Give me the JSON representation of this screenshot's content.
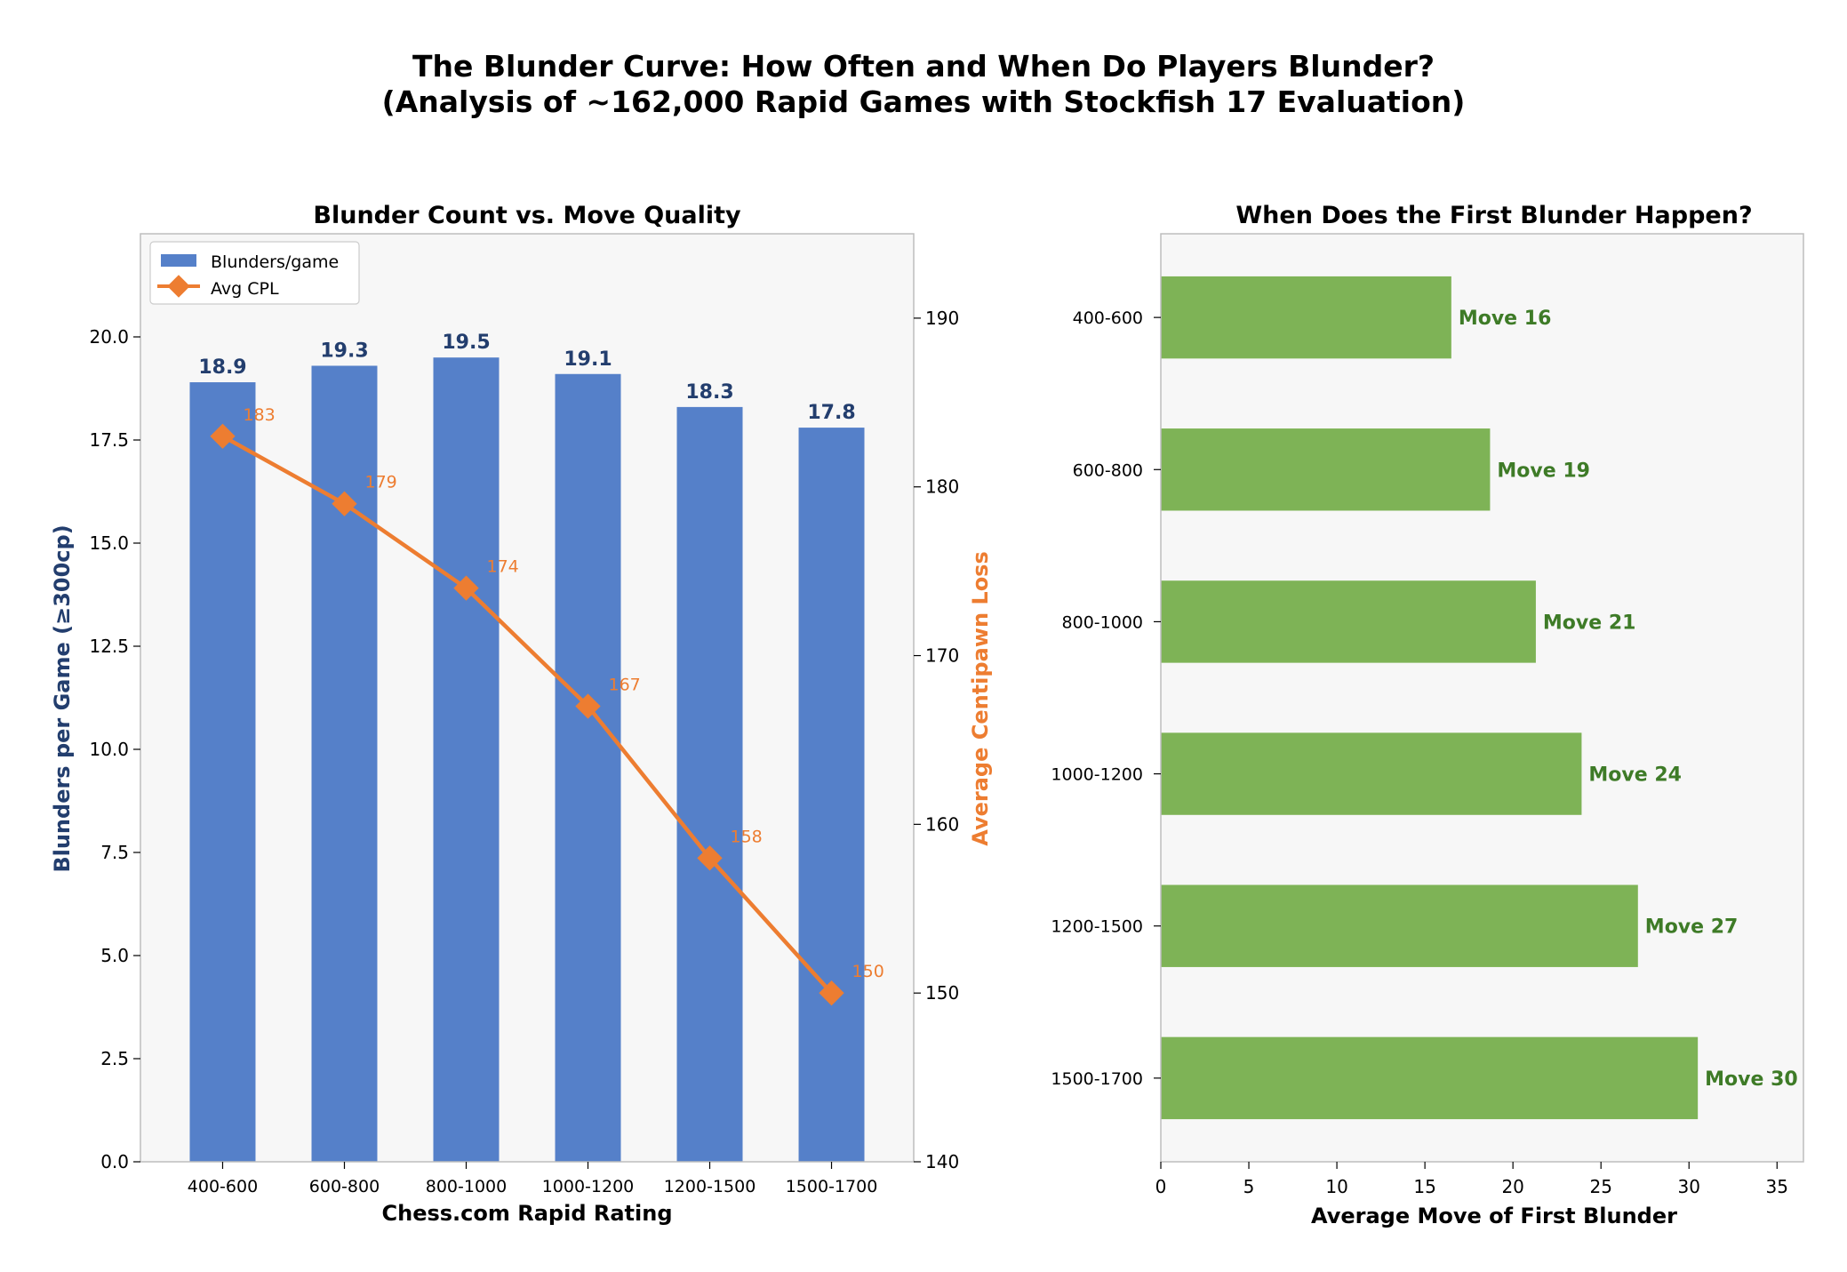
{
  "figure": {
    "title_line1": "The Blunder Curve: How Often and When Do Players Blunder?",
    "title_line2": "(Analysis of ~162,000 Rapid Games with Stockfish 17 Evaluation)"
  },
  "colors": {
    "bar_blue": "#5580c9",
    "label_blue": "#233e6e",
    "line_orange": "#ed7d31",
    "bar_green": "#7eb356",
    "label_green": "#3e7b27",
    "plot_bg": "#f7f7f7"
  },
  "chart_data": [
    {
      "type": "bar",
      "title": "Blunder Count vs. Move Quality",
      "xlabel": "Chess.com Rapid Rating",
      "ylabel": "Blunders per Game (≥300cp)",
      "ylabel_right": "Average Centipawn Loss",
      "categories": [
        "400-600",
        "600-800",
        "800-1000",
        "1000-1200",
        "1200-1500",
        "1500-1700"
      ],
      "series": [
        {
          "name": "Blunders/game",
          "kind": "bar",
          "axis": "left",
          "values": [
            18.9,
            19.3,
            19.5,
            19.1,
            18.3,
            17.8
          ],
          "labels": [
            "18.9",
            "19.3",
            "19.5",
            "19.1",
            "18.3",
            "17.8"
          ]
        },
        {
          "name": "Avg CPL",
          "kind": "line",
          "marker": "diamond",
          "axis": "right",
          "values": [
            183,
            179,
            174,
            167,
            158,
            150
          ],
          "labels": [
            "183",
            "179",
            "174",
            "167",
            "158",
            "150"
          ]
        }
      ],
      "ylim": [
        0,
        22.5
      ],
      "ylim_right": [
        140,
        195
      ],
      "yticks": [
        0.0,
        2.5,
        5.0,
        7.5,
        10.0,
        12.5,
        15.0,
        17.5,
        20.0
      ],
      "ytick_labels": [
        "0.0",
        "2.5",
        "5.0",
        "7.5",
        "10.0",
        "12.5",
        "15.0",
        "17.5",
        "20.0"
      ],
      "yticks_right": [
        140,
        150,
        160,
        170,
        180,
        190
      ],
      "ytick_labels_right": [
        "140",
        "150",
        "160",
        "170",
        "180",
        "190"
      ],
      "legend_position": "top-left",
      "grid": false
    },
    {
      "type": "bar",
      "orientation": "horizontal",
      "title": "When Does the First Blunder Happen?",
      "xlabel": "Average Move of First Blunder",
      "ylabel": "",
      "categories": [
        "400-600",
        "600-800",
        "800-1000",
        "1000-1200",
        "1200-1500",
        "1500-1700"
      ],
      "values": [
        16.5,
        18.7,
        21.3,
        23.9,
        27.1,
        30.5
      ],
      "labels": [
        "Move 16",
        "Move 19",
        "Move 21",
        "Move 24",
        "Move 27",
        "Move 30"
      ],
      "xlim": [
        0,
        36.5
      ],
      "xticks": [
        0,
        5,
        10,
        15,
        20,
        25,
        30,
        35
      ],
      "xtick_labels": [
        "0",
        "5",
        "10",
        "15",
        "20",
        "25",
        "30",
        "35"
      ],
      "grid": false
    }
  ]
}
